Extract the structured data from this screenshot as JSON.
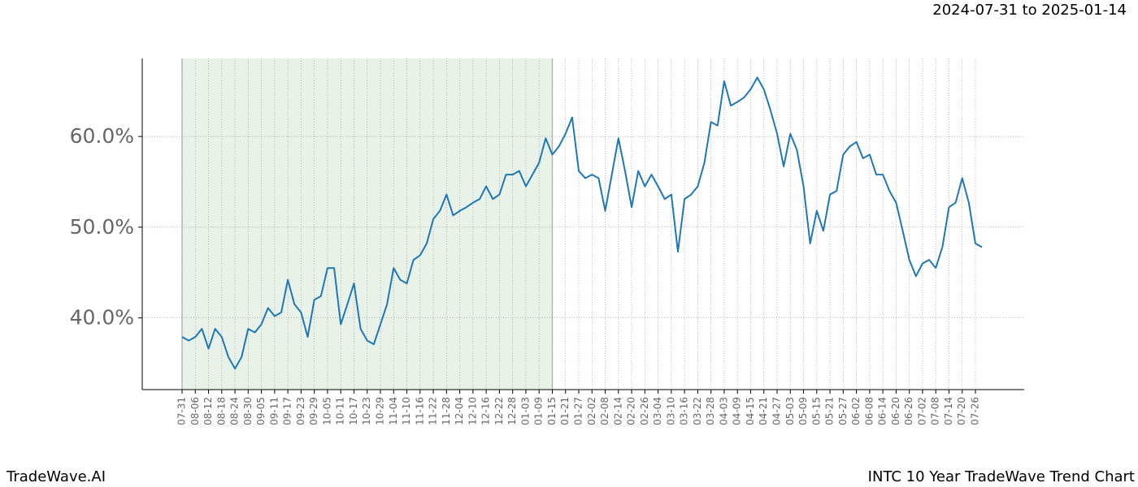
{
  "chart_data": {
    "type": "line",
    "title": "INTC 10 Year TradeWave Trend Chart",
    "subtitle": "2024-07-31 to 2025-01-14",
    "brand": "TradeWave.AI",
    "categories": [
      "07-31",
      null,
      "08-06",
      null,
      "08-12",
      null,
      "08-18",
      null,
      "08-24",
      null,
      "08-30",
      null,
      "09-05",
      null,
      "09-11",
      null,
      "09-17",
      null,
      "09-23",
      null,
      "09-29",
      null,
      "10-05",
      null,
      "10-11",
      null,
      "10-17",
      null,
      "10-23",
      null,
      "10-29",
      null,
      "11-04",
      null,
      "11-10",
      null,
      "11-16",
      null,
      "11-22",
      null,
      "11-28",
      null,
      "12-04",
      null,
      "12-10",
      null,
      "12-16",
      null,
      "12-22",
      null,
      "12-28",
      null,
      "01-03",
      null,
      "01-09",
      null,
      "01-15",
      null,
      "01-21",
      null,
      "01-27",
      null,
      "02-02",
      null,
      "02-08",
      null,
      "02-14",
      null,
      "02-20",
      null,
      "02-26",
      null,
      "03-04",
      null,
      "03-10",
      null,
      "03-16",
      null,
      "03-22",
      null,
      "03-28",
      null,
      "04-03",
      null,
      "04-09",
      null,
      "04-15",
      null,
      "04-21",
      null,
      "04-27",
      null,
      "05-03",
      null,
      "05-09",
      null,
      "05-15",
      null,
      "05-21",
      null,
      "05-27",
      null,
      "06-02",
      null,
      "06-08",
      null,
      "06-14",
      null,
      "06-20",
      null,
      "06-26",
      null,
      "07-02",
      null,
      "07-08",
      null,
      "07-14",
      null,
      "07-20",
      null,
      "07-26",
      null
    ],
    "values": [
      37.9,
      37.5,
      37.9,
      38.8,
      36.6,
      38.8,
      37.9,
      35.7,
      34.4,
      35.7,
      38.8,
      38.4,
      39.3,
      41.1,
      40.2,
      40.6,
      44.2,
      41.5,
      40.6,
      37.9,
      42.0,
      42.4,
      45.5,
      45.5,
      39.3,
      41.5,
      43.8,
      38.8,
      37.5,
      37.1,
      39.3,
      41.5,
      45.5,
      44.2,
      43.8,
      46.4,
      46.9,
      48.2,
      50.9,
      51.8,
      53.6,
      51.3,
      51.8,
      52.2,
      52.7,
      53.1,
      54.5,
      53.1,
      53.6,
      55.8,
      55.8,
      56.2,
      54.5,
      55.8,
      57.1,
      59.8,
      58.0,
      58.9,
      60.3,
      62.1,
      56.2,
      55.4,
      55.8,
      55.4,
      51.8,
      55.8,
      59.8,
      56.2,
      52.2,
      56.2,
      54.5,
      55.8,
      54.5,
      53.1,
      53.6,
      47.3,
      53.1,
      53.6,
      54.5,
      57.1,
      61.6,
      61.2,
      66.1,
      63.4,
      63.8,
      64.3,
      65.2,
      66.5,
      65.2,
      62.9,
      60.3,
      56.7,
      60.3,
      58.5,
      54.5,
      48.2,
      51.8,
      49.6,
      53.6,
      54.0,
      58.0,
      58.9,
      59.4,
      57.6,
      58.0,
      55.8,
      55.8,
      54.0,
      52.7,
      49.6,
      46.4,
      44.6,
      46.0,
      46.4,
      45.5,
      47.8,
      52.2,
      52.7,
      55.4,
      52.7,
      48.2,
      47.8
    ],
    "color": "#1f77b4",
    "ylim": [
      32.1,
      68.6
    ],
    "yticks": [
      {
        "value": 40,
        "label": "40.0%"
      },
      {
        "value": 50,
        "label": "50.0%"
      },
      {
        "value": 60,
        "label": "60.0%"
      }
    ],
    "grid": true,
    "highlight": {
      "start": "07-31",
      "end": "01-15",
      "color": "#e8f2e8"
    }
  }
}
